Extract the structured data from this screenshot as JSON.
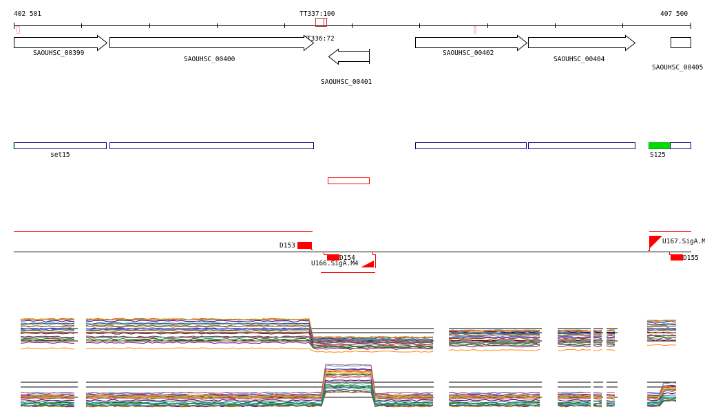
{
  "ruler": {
    "start": "402 501",
    "end": "407 500"
  },
  "terminators": [
    {
      "label": "TT337:100"
    },
    {
      "label": "TT336:72"
    }
  ],
  "genes": [
    {
      "name": "SAOUHSC_00399",
      "strand": "+"
    },
    {
      "name": "SAOUHSC_00400",
      "strand": "+"
    },
    {
      "name": "SAOUHSC_00401",
      "strand": "-"
    },
    {
      "name": "SAOUHSC_00402",
      "strand": "+"
    },
    {
      "name": "SAOUHSC_00404",
      "strand": "+"
    },
    {
      "name": "SAOUHSC_00405",
      "strand": "+"
    }
  ],
  "operons": [
    {
      "label": "set15"
    },
    {
      "label": "S125"
    }
  ],
  "transcripts": [
    {
      "label": "D153"
    },
    {
      "label": "D154"
    },
    {
      "label": "U166.SigA.M4"
    },
    {
      "label": "U167.SigA.M"
    },
    {
      "label": "D155"
    }
  ],
  "colors": {
    "gene_outline": "#000000",
    "operon_outline": "#000080",
    "operon_highlight": "#00dd00",
    "feature_red": "#ff0000",
    "terminator_pink": "#ffaaaa"
  }
}
